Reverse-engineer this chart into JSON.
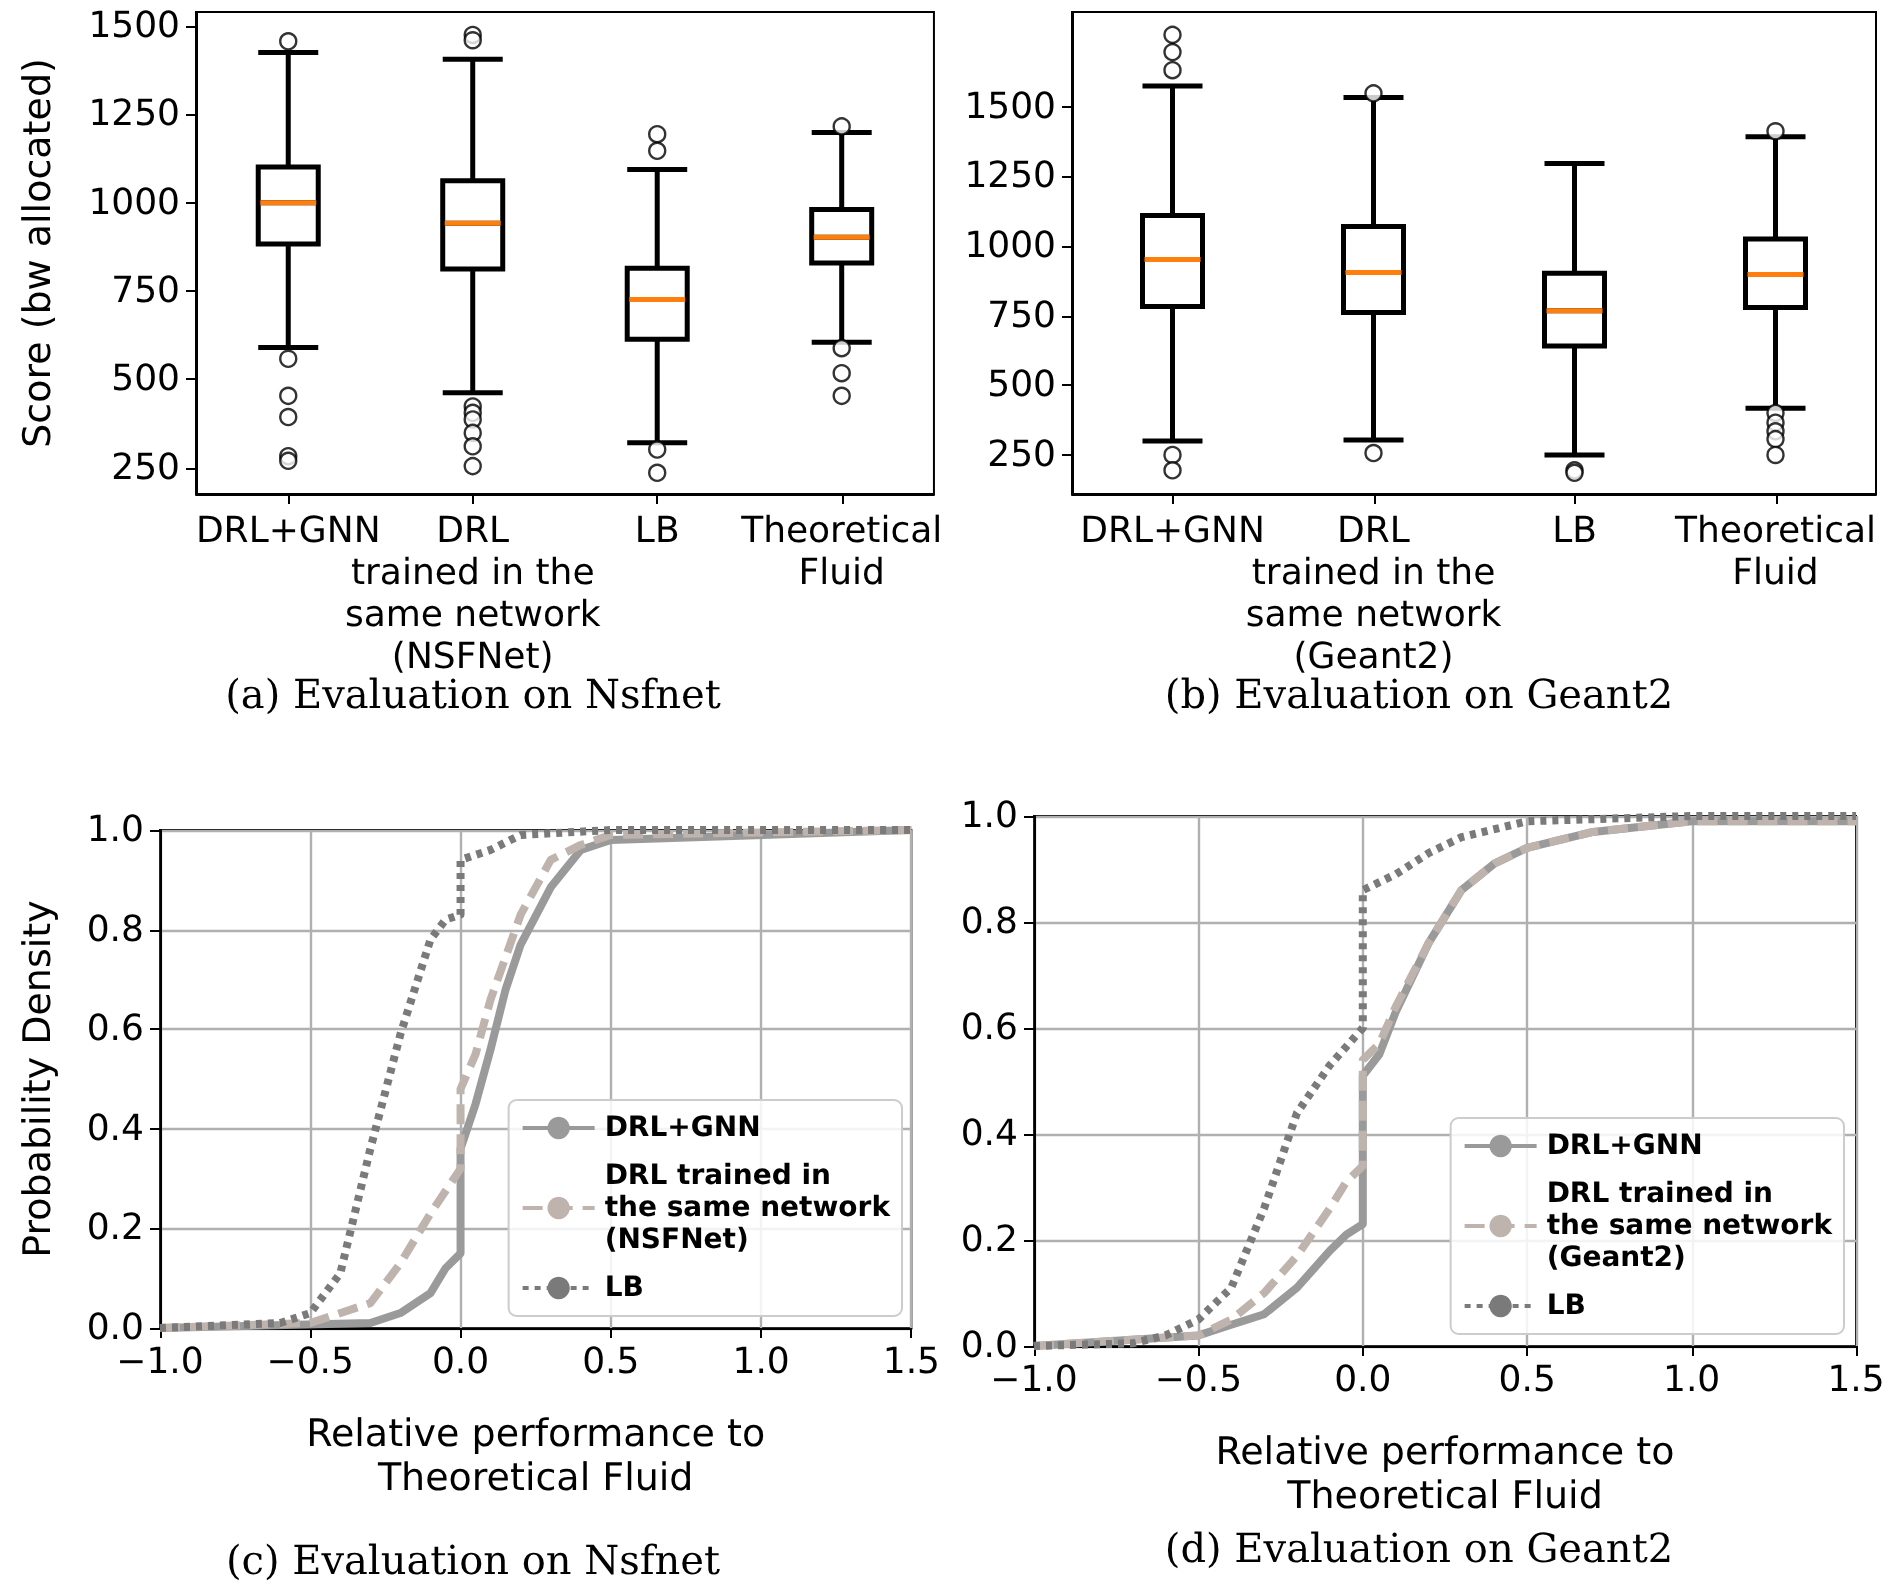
{
  "chart_data": [
    {
      "type": "box",
      "ylabel": "Score (bw allocated)",
      "annotations": [
        "(a) Evaluation on Nsfnet"
      ],
      "categories": [
        "DRL+GNN",
        "DRL\ntrained in the\nsame network\n(NSFNet)",
        "LB",
        "Theoretical\nFluid"
      ],
      "color": "#000000",
      "ylim": [
        175,
        1540
      ],
      "yticks": [
        250,
        500,
        750,
        1000,
        1250,
        1500
      ],
      "grid": false,
      "boxes": [
        {
          "low": 590,
          "q1": 883,
          "median": 1000,
          "q3": 1101,
          "high": 1425,
          "outliers": [
            1457,
            558,
            453,
            393,
            282,
            269
          ]
        },
        {
          "low": 462,
          "q1": 812,
          "median": 942,
          "q3": 1062,
          "high": 1406,
          "outliers": [
            1475,
            1460,
            423,
            405,
            386,
            348,
            310,
            254
          ]
        },
        {
          "low": 320,
          "q1": 613,
          "median": 726,
          "q3": 814,
          "high": 1094,
          "outliers": [
            1194,
            1147,
            301,
            235
          ]
        },
        {
          "low": 605,
          "q1": 829,
          "median": 902,
          "q3": 981,
          "high": 1199,
          "outliers": [
            1216,
            588,
            517,
            453
          ]
        }
      ]
    },
    {
      "type": "box",
      "annotations": [
        "(b) Evaluation on Geant2"
      ],
      "categories": [
        "DRL+GNN",
        "DRL\ntrained in the\nsame network\n(Geant2)",
        "LB",
        "Theoretical\nFluid"
      ],
      "color": "#000000",
      "ylim": [
        110,
        1840
      ],
      "yticks": [
        250,
        500,
        750,
        1000,
        1250,
        1500
      ],
      "grid": false,
      "boxes": [
        {
          "low": 300,
          "q1": 783,
          "median": 952,
          "q3": 1110,
          "high": 1574,
          "outliers": [
            1758,
            1696,
            1631,
            250,
            195
          ]
        },
        {
          "low": 304,
          "q1": 761,
          "median": 905,
          "q3": 1070,
          "high": 1533,
          "outliers": [
            1548,
            257
          ]
        },
        {
          "low": 250,
          "q1": 641,
          "median": 768,
          "q3": 902,
          "high": 1296,
          "outliers": [
            195,
            186
          ]
        },
        {
          "low": 418,
          "q1": 779,
          "median": 898,
          "q3": 1025,
          "high": 1392,
          "outliers": [
            1412,
            401,
            366,
            335,
            307,
            250
          ]
        }
      ]
    },
    {
      "type": "line",
      "xlabel": "Relative performance to\nTheoretical Fluid",
      "ylabel": "Probability Density",
      "annotations": [
        "(c) Evaluation on Nsfnet"
      ],
      "xlim": [
        -1,
        1.5
      ],
      "xticks": [
        {
          "value": -1,
          "label": "−1.0"
        },
        {
          "value": -0.5,
          "label": "−0.5"
        },
        {
          "value": 0,
          "label": "0.0"
        },
        {
          "value": 0.5,
          "label": "0.5"
        },
        {
          "value": 1,
          "label": "1.0"
        },
        {
          "value": 1.5,
          "label": "1.5"
        }
      ],
      "ylim": [
        0,
        1
      ],
      "yticks": [
        {
          "value": 0,
          "label": "0.0"
        },
        {
          "value": 0.2,
          "label": "0.2"
        },
        {
          "value": 0.4,
          "label": "0.4"
        },
        {
          "value": 0.6,
          "label": "0.6"
        },
        {
          "value": 0.8,
          "label": "0.8"
        },
        {
          "value": 1,
          "label": "1.0"
        }
      ],
      "grid": true,
      "legend": "lower right",
      "marker": "none",
      "series": [
        {
          "name": "DRL+GNN",
          "color": "#9a9a9a",
          "line_style": "solid",
          "x": [
            -1,
            -0.3,
            -0.2,
            -0.1,
            -0.05,
            0,
            0,
            0.05,
            0.1,
            0.15,
            0.2,
            0.3,
            0.4,
            0.5,
            1.5
          ],
          "values": [
            0,
            0.01,
            0.03,
            0.07,
            0.12,
            0.15,
            0.36,
            0.45,
            0.56,
            0.68,
            0.77,
            0.885,
            0.96,
            0.98,
            1
          ]
        },
        {
          "name": "DRL trained in\nthe same network\n(NSFNet)",
          "color": "#bfb3ad",
          "line_style": "dashed",
          "x": [
            -1,
            -0.5,
            -0.3,
            -0.2,
            -0.1,
            0,
            0,
            0.05,
            0.1,
            0.2,
            0.3,
            0.4,
            0.5,
            1.5
          ],
          "values": [
            0,
            0.01,
            0.05,
            0.13,
            0.23,
            0.32,
            0.48,
            0.55,
            0.66,
            0.83,
            0.94,
            0.97,
            0.99,
            1
          ]
        },
        {
          "name": "LB",
          "color": "#7a7a7a",
          "line_style": "dotted",
          "x": [
            -1,
            -0.6,
            -0.5,
            -0.4,
            -0.3,
            -0.2,
            -0.1,
            -0.05,
            0,
            0,
            0.1,
            0.2,
            0.5,
            1.5
          ],
          "values": [
            0,
            0.01,
            0.03,
            0.11,
            0.36,
            0.59,
            0.78,
            0.82,
            0.83,
            0.94,
            0.96,
            0.99,
            1,
            1
          ]
        }
      ]
    },
    {
      "type": "line",
      "xlabel": "Relative performance to\nTheoretical Fluid",
      "annotations": [
        "(d) Evaluation on Geant2"
      ],
      "xlim": [
        -1,
        1.5
      ],
      "xticks": [
        {
          "value": -1,
          "label": "−1.0"
        },
        {
          "value": -0.5,
          "label": "−0.5"
        },
        {
          "value": 0,
          "label": "0.0"
        },
        {
          "value": 0.5,
          "label": "0.5"
        },
        {
          "value": 1,
          "label": "1.0"
        },
        {
          "value": 1.5,
          "label": "1.5"
        }
      ],
      "ylim": [
        0,
        1
      ],
      "yticks": [
        {
          "value": 0,
          "label": "0.0"
        },
        {
          "value": 0.2,
          "label": "0.2"
        },
        {
          "value": 0.4,
          "label": "0.4"
        },
        {
          "value": 0.6,
          "label": "0.6"
        },
        {
          "value": 0.8,
          "label": "0.8"
        },
        {
          "value": 1,
          "label": "1.0"
        }
      ],
      "grid": true,
      "legend": "lower right",
      "marker": "none",
      "series": [
        {
          "name": "DRL+GNN",
          "color": "#9a9a9a",
          "line_style": "solid",
          "x": [
            -1,
            -0.5,
            -0.4,
            -0.3,
            -0.2,
            -0.1,
            -0.05,
            0,
            0,
            0.05,
            0.1,
            0.2,
            0.3,
            0.4,
            0.5,
            0.7,
            1,
            1.5
          ],
          "values": [
            0,
            0.02,
            0.04,
            0.06,
            0.11,
            0.18,
            0.21,
            0.23,
            0.51,
            0.55,
            0.63,
            0.76,
            0.86,
            0.91,
            0.94,
            0.97,
            0.99,
            0.99
          ]
        },
        {
          "name": "DRL trained in\nthe same network\n(Geant2)",
          "color": "#bfb3ad",
          "line_style": "dashed",
          "x": [
            -1,
            -0.5,
            -0.4,
            -0.3,
            -0.2,
            -0.1,
            -0.05,
            0,
            0,
            0.05,
            0.1,
            0.2,
            0.3,
            0.4,
            0.5,
            0.7,
            1,
            1.5
          ],
          "values": [
            0,
            0.02,
            0.05,
            0.1,
            0.17,
            0.26,
            0.31,
            0.34,
            0.54,
            0.57,
            0.64,
            0.76,
            0.86,
            0.91,
            0.94,
            0.97,
            0.99,
            0.99
          ]
        },
        {
          "name": "LB",
          "color": "#7a7a7a",
          "line_style": "dotted",
          "x": [
            -1,
            -0.7,
            -0.6,
            -0.5,
            -0.4,
            -0.3,
            -0.2,
            -0.1,
            -0.05,
            0,
            0,
            0.1,
            0.2,
            0.3,
            0.5,
            1,
            1.5
          ],
          "values": [
            0,
            0.005,
            0.02,
            0.05,
            0.11,
            0.26,
            0.44,
            0.53,
            0.565,
            0.6,
            0.86,
            0.89,
            0.93,
            0.96,
            0.99,
            1,
            1
          ]
        }
      ]
    }
  ]
}
